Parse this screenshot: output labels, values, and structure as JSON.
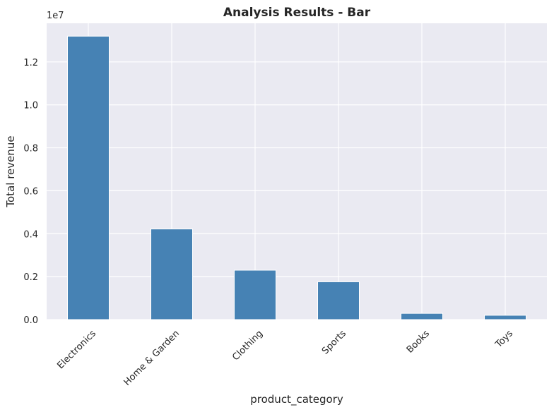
{
  "chart_data": {
    "type": "bar",
    "title": "Analysis Results - Bar",
    "xlabel": "product_category",
    "ylabel": "Total revenue",
    "offset_text": "1e7",
    "categories": [
      "Electronics",
      "Home & Garden",
      "Clothing",
      "Sports",
      "Books",
      "Toys"
    ],
    "values": [
      13200000,
      4220000,
      2300000,
      1760000,
      290000,
      200000
    ],
    "y_scale": 10000000,
    "ylim": [
      0,
      13800000
    ],
    "yticks": [
      0,
      2000000,
      4000000,
      6000000,
      8000000,
      10000000,
      12000000
    ],
    "ytick_labels": [
      "0.0",
      "0.2",
      "0.4",
      "0.6",
      "0.8",
      "1.0",
      "1.2"
    ],
    "grid": true,
    "legend": "none",
    "colors": {
      "bar": "#4682b4",
      "plot_background": "#eaeaf2",
      "grid": "#ffffff",
      "text": "#262626"
    }
  }
}
